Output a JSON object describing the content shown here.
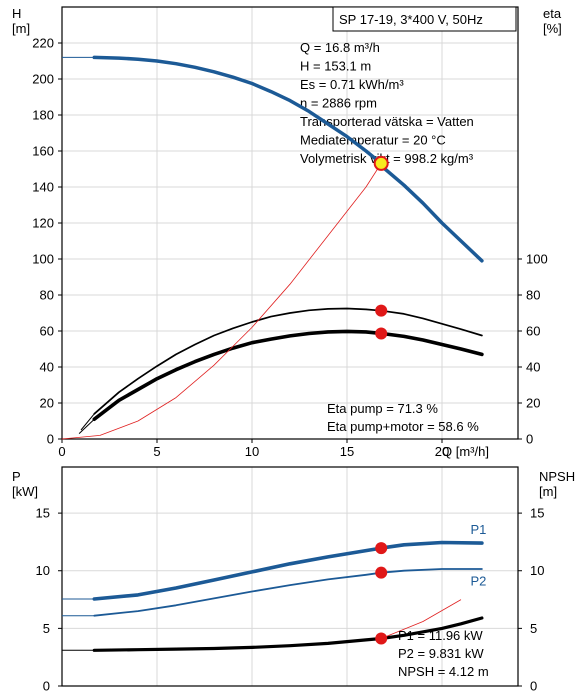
{
  "chart_data": [
    {
      "type": "line",
      "panel": "head-efficiency",
      "title": "SP 17-19, 3*400 V, 50Hz",
      "xlabel": "Q [m³/h]",
      "ylabel_left": "H\n[m]",
      "ylabel_right": "eta\n[%]",
      "xlim": [
        0,
        24
      ],
      "ylim_left": [
        0,
        240
      ],
      "ylim_right": [
        0,
        240
      ],
      "x_ticks": [
        0,
        5,
        10,
        15,
        20
      ],
      "y_ticks_left": [
        0,
        20,
        40,
        60,
        80,
        100,
        120,
        140,
        160,
        180,
        200,
        220
      ],
      "y_ticks_right": [
        0,
        20,
        40,
        60,
        80,
        100
      ],
      "grid": true,
      "info_lines": [
        "Q = 16.8 m³/h",
        "H = 153.1 m",
        "Es = 0.71 kWh/m³",
        "n = 2886 rpm",
        "Transporterad vätska = Vatten",
        "Mediatemperatur = 20 °C",
        "Volymetrisk vikt = 998.2 kg/m³"
      ],
      "annotations": [
        "Eta pump = 71.3 %",
        "Eta pump+motor = 58.6 %"
      ],
      "series": [
        {
          "name": "H",
          "role": "head",
          "color": "#1c5a96",
          "thin_segment": {
            "x": [
              0,
              1.7
            ],
            "y": [
              212,
              212
            ]
          },
          "x": [
            1.7,
            3,
            4,
            5,
            6,
            7,
            8,
            9,
            10,
            11,
            12,
            13,
            14,
            15,
            16,
            16.8,
            17,
            18,
            19,
            20,
            21,
            22.1
          ],
          "y": [
            212,
            211.6,
            211,
            210,
            208.5,
            206.5,
            204,
            201,
            197.5,
            193,
            188,
            182,
            175,
            168,
            160,
            153.1,
            150,
            141,
            131,
            120,
            110,
            99
          ]
        },
        {
          "name": "Eta pump",
          "role": "eta",
          "color": "#000000",
          "x": [
            1.7,
            3,
            4,
            5,
            6,
            7,
            8,
            9,
            10,
            11,
            12,
            13,
            14,
            15,
            16,
            16.8,
            17,
            18,
            19,
            20,
            21,
            22.1
          ],
          "y": [
            14,
            26,
            33.5,
            40.5,
            47,
            52.5,
            57.5,
            61.5,
            65,
            68,
            70,
            71.5,
            72.3,
            72.5,
            72,
            71.3,
            71,
            69.5,
            67,
            64,
            61,
            57.5
          ]
        },
        {
          "name": "Eta pump+motor",
          "role": "eta",
          "color": "#000000",
          "x": [
            1.7,
            3,
            4,
            5,
            6,
            7,
            8,
            9,
            10,
            11,
            12,
            13,
            14,
            15,
            16,
            16.8,
            17,
            18,
            19,
            20,
            21,
            22.1
          ],
          "y": [
            11,
            21.5,
            27.5,
            33.5,
            38.5,
            43,
            47,
            50.5,
            53.5,
            55.5,
            57.3,
            58.6,
            59.5,
            59.8,
            59.5,
            58.6,
            58.4,
            57,
            55,
            52.5,
            50,
            47
          ]
        },
        {
          "name": "System curve",
          "role": "system",
          "color": "#e02020",
          "x": [
            0,
            2,
            4,
            6,
            8,
            10,
            12,
            14,
            16,
            16.8,
            17
          ],
          "y": [
            0,
            2,
            10,
            23,
            41,
            62,
            86,
            113,
            140,
            153.1,
            157
          ]
        }
      ],
      "operating_points": [
        {
          "x": 16.8,
          "y": 153.1,
          "style": "yellow"
        },
        {
          "x": 16.8,
          "y": 71.3,
          "style": "red"
        },
        {
          "x": 16.8,
          "y": 58.6,
          "style": "red"
        }
      ]
    },
    {
      "type": "line",
      "panel": "power-npsh",
      "ylabel_left": "P\n[kW]",
      "ylabel_right": "NPSH\n[m]",
      "xlim": [
        0,
        24
      ],
      "ylim_left": [
        0,
        19
      ],
      "ylim_right": [
        0,
        19
      ],
      "y_ticks_left": [
        0,
        5,
        10,
        15
      ],
      "y_ticks_right": [
        0,
        5,
        10,
        15
      ],
      "grid": true,
      "annotations": [
        "P1 = 11.96 kW",
        "P2 = 9.831 kW",
        "NPSH = 4.12 m"
      ],
      "series": [
        {
          "name": "P1",
          "role": "p1",
          "color": "#1c5a96",
          "thin_segment": {
            "x": [
              0,
              1.7
            ],
            "y": [
              7.55,
              7.55
            ]
          },
          "x": [
            1.7,
            4,
            6,
            8,
            10,
            12,
            14,
            16,
            16.8,
            18,
            20,
            22.1
          ],
          "y": [
            7.55,
            7.9,
            8.5,
            9.2,
            9.9,
            10.6,
            11.2,
            11.75,
            11.96,
            12.25,
            12.45,
            12.4
          ]
        },
        {
          "name": "P2",
          "role": "p2",
          "color": "#1c5a96",
          "thin_segment": {
            "x": [
              0,
              1.7
            ],
            "y": [
              6.1,
              6.1
            ]
          },
          "x": [
            1.7,
            4,
            6,
            8,
            10,
            12,
            14,
            16,
            16.8,
            18,
            20,
            22.1
          ],
          "y": [
            6.1,
            6.5,
            7.0,
            7.6,
            8.2,
            8.75,
            9.25,
            9.65,
            9.831,
            10.0,
            10.15,
            10.15
          ]
        },
        {
          "name": "NPSH",
          "role": "npsh",
          "color": "#000000",
          "thin_segment": {
            "x": [
              0,
              1.7
            ],
            "y": [
              3.1,
              3.1
            ]
          },
          "x": [
            1.7,
            4,
            6,
            8,
            10,
            12,
            14,
            15,
            16,
            16.8,
            18,
            20,
            21,
            22.1
          ],
          "y": [
            3.1,
            3.15,
            3.2,
            3.25,
            3.35,
            3.5,
            3.7,
            3.85,
            4.0,
            4.12,
            4.4,
            5.0,
            5.4,
            5.9
          ]
        }
      ],
      "curve_labels": [
        {
          "text": "P1",
          "x": 21.5,
          "y": 13.2
        },
        {
          "text": "P2",
          "x": 21.5,
          "y": 8.7
        }
      ],
      "operating_points": [
        {
          "x": 16.8,
          "y": 11.96,
          "style": "red"
        },
        {
          "x": 16.8,
          "y": 9.831,
          "style": "red"
        },
        {
          "x": 16.8,
          "y": 4.12,
          "style": "red"
        }
      ]
    }
  ],
  "colors": {
    "blue": "#1c5a96",
    "red_point": "#e01818",
    "yellow_point": "#f7ea1e",
    "grid": "#d9d9d9",
    "system": "#e02020"
  }
}
